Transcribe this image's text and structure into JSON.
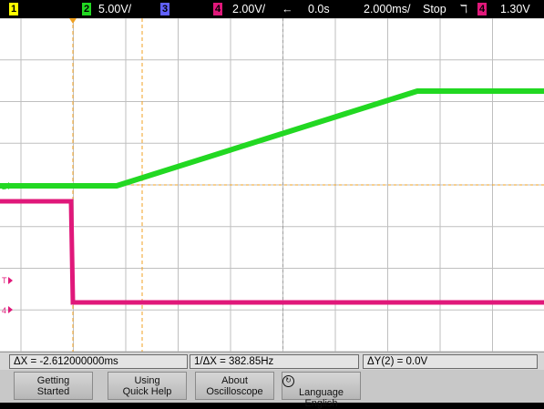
{
  "top_bar": {
    "ch1_badge": "1",
    "ch2_badge": "2",
    "ch2_scale": "5.00V/",
    "ch3_badge": "3",
    "ch4_badge": "4",
    "ch4_scale": "2.00V/",
    "delay_arrow": "←",
    "delay": "0.0s",
    "timebase": "2.000ms/",
    "run_state": "Stop",
    "trigger_slope_symbol": "ℸ",
    "trigger_source_badge": "4",
    "trigger_level": "1.30V"
  },
  "colors": {
    "ch1": "#ffff00",
    "ch2": "#22d822",
    "ch3": "#6060ff",
    "ch4": "#e0187a",
    "marker": "#f0a020",
    "screen_bg": "#ffffff",
    "grid": "#bfbfbf"
  },
  "screen": {
    "ch2_marker": "2",
    "trigger_marker": "T",
    "ch4_marker": "4",
    "grid_divisions": {
      "x": 10,
      "y": 8
    }
  },
  "measurements": {
    "delta_x": "ΔX = -2.612000000ms",
    "inv_delta_x": "1/ΔX = 382.85Hz",
    "delta_y": "ΔY(2) = 0.0V"
  },
  "softkeys": [
    {
      "line1": "Getting",
      "line2": "Started"
    },
    {
      "line1": "Using",
      "line2": "Quick Help"
    },
    {
      "line1": "About",
      "line2": "Oscilloscope"
    },
    {
      "icon": "rotate-knob-icon",
      "line1": "Language",
      "line2": "English"
    }
  ]
}
